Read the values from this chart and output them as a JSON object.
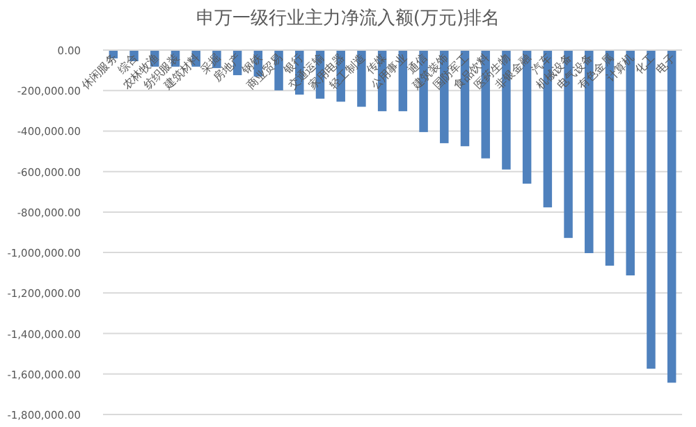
{
  "chart_data": {
    "type": "bar",
    "title": "申万一级行业主力净流入额(万元)排名",
    "categories": [
      "休闲服务",
      "综合",
      "农林牧渔",
      "纺织服装",
      "建筑材料",
      "采掘",
      "房地产",
      "钢铁",
      "商业贸易",
      "银行",
      "交通运输",
      "家用电器",
      "轻工制造",
      "传媒",
      "公用事业",
      "通信",
      "建筑装饰",
      "国防军工",
      "食品饮料",
      "医药生物",
      "非银金融",
      "汽车",
      "机械设备",
      "电气设备",
      "有色金属",
      "计算机",
      "化工",
      "电子"
    ],
    "values": [
      -41000,
      -55000,
      -82000,
      -82000,
      -82000,
      -89000,
      -124000,
      -131000,
      -199000,
      -220000,
      -240000,
      -255000,
      -280000,
      -302000,
      -302000,
      -405000,
      -460000,
      -475000,
      -535000,
      -590000,
      -660000,
      -777000,
      -928000,
      -1003000,
      -1065000,
      -1113000,
      -1574000,
      -1643000
    ],
    "color": "#4f81bd",
    "ylim": [
      -1800000,
      0
    ],
    "yticks": [
      {
        "value": 0,
        "label": "0.00"
      },
      {
        "value": -200000,
        "label": "-200,000.00"
      },
      {
        "value": -400000,
        "label": "-400,000.00"
      },
      {
        "value": -600000,
        "label": "-600,000.00"
      },
      {
        "value": -800000,
        "label": "-800,000.00"
      },
      {
        "value": -1000000,
        "label": "-1,000,000.00"
      },
      {
        "value": -1200000,
        "label": "-1,200,000.00"
      },
      {
        "value": -1400000,
        "label": "-1,400,000.00"
      },
      {
        "value": -1600000,
        "label": "-1,600,000.00"
      },
      {
        "value": -1800000,
        "label": "-1,800,000.00"
      }
    ],
    "grid": "y"
  }
}
